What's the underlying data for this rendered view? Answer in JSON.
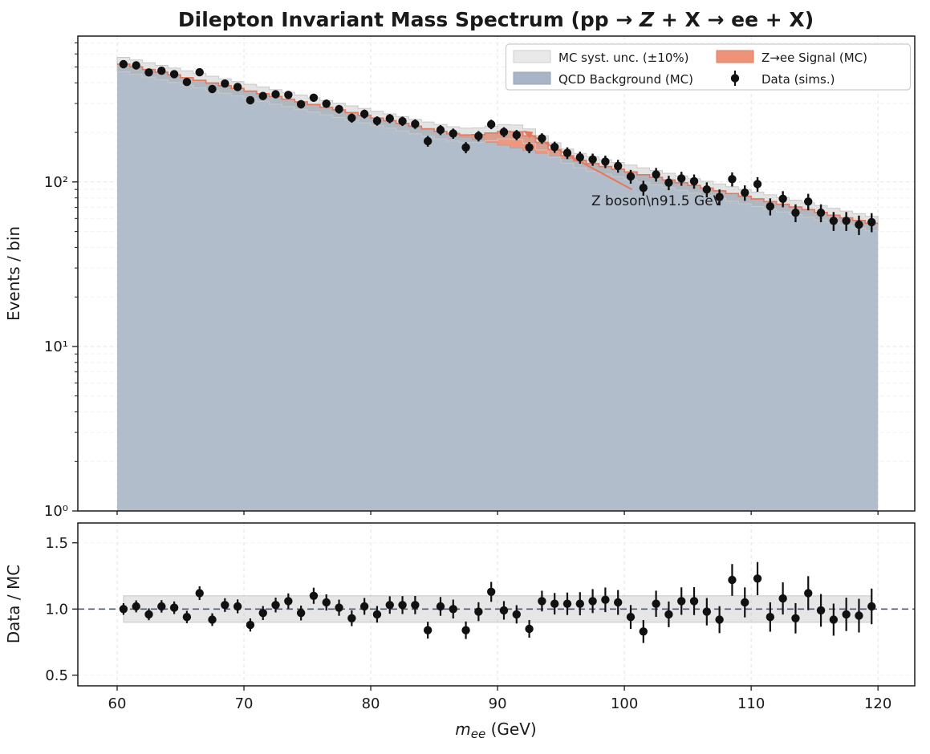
{
  "chart_data": {
    "type": "bar",
    "subtype": "stacked-histogram-log-with-data-points-and-ratio-panel",
    "title": {
      "pre": "Dilepton Invariant Mass Spectrum (pp → ",
      "italic": "Z",
      "post": " + X → ee + X)"
    },
    "xlabel": {
      "var": "m",
      "sub": "ee",
      "unit": " (GeV)"
    },
    "x_range": [
      56.9,
      122.9
    ],
    "xticks": [
      60,
      70,
      80,
      90,
      100,
      110,
      120
    ],
    "main_panel": {
      "ylabel": "Events / bin",
      "yscale": "log",
      "y_range": [
        1,
        770
      ],
      "ytick_values": [
        1,
        10,
        100
      ],
      "ytick_labels": [
        "10⁰",
        "10¹",
        "10²"
      ],
      "grid": "both-dashed"
    },
    "ratio_panel": {
      "ylabel": "Data / MC",
      "y_range": [
        0.42,
        1.65
      ],
      "ytick_values": [
        0.5,
        1.0,
        1.5
      ],
      "ytick_labels": [
        "0.5",
        "1.0",
        "1.5"
      ],
      "band": [
        0.9,
        1.1
      ],
      "reference_line": 1.0
    },
    "legend": {
      "items": [
        {
          "label": "MC syst. unc. (±10%)",
          "type": "patch",
          "color": "#e9e9e9",
          "edge": "#cfcfcf"
        },
        {
          "label": "QCD Background (MC)",
          "type": "patch",
          "color": "#a9b5c7",
          "edge": "#97a5ba"
        },
        {
          "label": "Z→ee Signal (MC)",
          "type": "patch",
          "color": "#ee9278",
          "edge": "#e07e60"
        },
        {
          "label": "Data (sims.)",
          "type": "marker",
          "color": "#111111"
        }
      ]
    },
    "annotation": {
      "text": "Z boson\\n91.5 GeV",
      "color": "#e8765a",
      "text_pos": [
        97.4,
        77
      ],
      "arrow_from": [
        100.6,
        90
      ],
      "arrow_to": [
        92.0,
        205
      ]
    },
    "syst_unc_fraction": 0.1,
    "colors": {
      "background_fill": "#b2bdcc",
      "background_edge": "#93a2b8",
      "signal_fill": "#ee9278",
      "signal_line": "#e8765a",
      "band_fill": "#ababab",
      "band_edge": "#c8c8c8",
      "data_marker": "#111111",
      "ratio_refline": "#4a5a78",
      "grid_major": "#e2e2e2",
      "grid_minor": "#f0f0f0",
      "spine": "#1a1a1a"
    },
    "bins": {
      "width": 1.0,
      "centers": [
        60.5,
        61.5,
        62.5,
        63.5,
        64.5,
        65.5,
        66.5,
        67.5,
        68.5,
        69.5,
        70.5,
        71.5,
        72.5,
        73.5,
        74.5,
        75.5,
        76.5,
        77.5,
        78.5,
        79.5,
        80.5,
        81.5,
        82.5,
        83.5,
        84.5,
        85.5,
        86.5,
        87.5,
        88.5,
        89.5,
        90.5,
        91.5,
        92.5,
        93.5,
        94.5,
        95.5,
        96.5,
        97.5,
        98.5,
        99.5,
        100.5,
        101.5,
        102.5,
        103.5,
        104.5,
        105.5,
        106.5,
        107.5,
        108.5,
        109.5,
        110.5,
        111.5,
        112.5,
        113.5,
        114.5,
        115.5,
        116.5,
        117.5,
        118.5,
        119.5
      ]
    },
    "series": [
      {
        "name": "QCD Background (MC)",
        "values": [
          520.0,
          500.8,
          482.2,
          464.4,
          447.2,
          430.6,
          414.7,
          399.3,
          384.5,
          370.3,
          356.6,
          343.4,
          330.7,
          318.4,
          306.6,
          295.3,
          284.4,
          273.8,
          263.7,
          253.9,
          244.5,
          235.5,
          226.7,
          218.3,
          210.3,
          202.5,
          195.0,
          187.8,
          180.8,
          174.1,
          167.7,
          161.5,
          155.5,
          149.7,
          144.2,
          138.9,
          133.7,
          128.8,
          124.0,
          119.4,
          115.0,
          110.7,
          106.6,
          102.7,
          98.9,
          95.2,
          91.7,
          88.3,
          85.0,
          81.9,
          78.8,
          75.9,
          73.1,
          70.4,
          67.8,
          65.3,
          62.8,
          60.5,
          58.3,
          56.1
        ]
      },
      {
        "name": "Z→ee Signal (MC)",
        "values": [
          0,
          0,
          0,
          0,
          0,
          0,
          0,
          0,
          0,
          0,
          0,
          0,
          0,
          0,
          0,
          0,
          0,
          0,
          0,
          0,
          0,
          0,
          0,
          0,
          0.1,
          0.4,
          1.8,
          5.4,
          13.0,
          24.3,
          35.3,
          40.0,
          35.3,
          24.3,
          13.0,
          5.4,
          1.8,
          0.4,
          0.1,
          0,
          0,
          0,
          0,
          0,
          0,
          0,
          0,
          0,
          0,
          0,
          0,
          0,
          0,
          0,
          0,
          0,
          0,
          0,
          0,
          0
        ]
      },
      {
        "name": "Data (sims.)",
        "values": [
          520,
          511,
          463,
          474,
          452,
          405,
          464,
          367,
          396,
          378,
          314,
          333,
          341,
          338,
          297,
          325,
          299,
          277,
          245,
          259,
          235,
          243,
          234,
          225,
          177,
          207,
          197,
          162,
          190,
          224,
          201,
          193,
          162,
          184,
          163,
          150,
          141,
          137,
          133,
          125,
          108,
          92,
          111,
          99,
          105,
          101,
          90,
          81,
          104,
          86,
          97,
          71,
          79,
          65,
          76,
          65,
          58,
          58,
          55,
          57
        ]
      },
      {
        "name": "Data / MC ratio",
        "values": [
          1.0,
          1.02,
          0.96,
          1.02,
          1.01,
          0.94,
          1.12,
          0.92,
          1.03,
          1.02,
          0.88,
          0.97,
          1.03,
          1.06,
          0.97,
          1.1,
          1.05,
          1.01,
          0.93,
          1.02,
          0.96,
          1.03,
          1.03,
          1.03,
          0.84,
          1.02,
          1.0,
          0.84,
          0.98,
          1.13,
          0.99,
          0.96,
          0.85,
          1.06,
          1.04,
          1.04,
          1.04,
          1.06,
          1.07,
          1.05,
          0.94,
          0.83,
          1.04,
          0.96,
          1.06,
          1.06,
          0.98,
          0.92,
          1.22,
          1.05,
          1.23,
          0.94,
          1.08,
          0.93,
          1.12,
          0.99,
          0.92,
          0.96,
          0.95,
          1.02
        ]
      }
    ]
  }
}
